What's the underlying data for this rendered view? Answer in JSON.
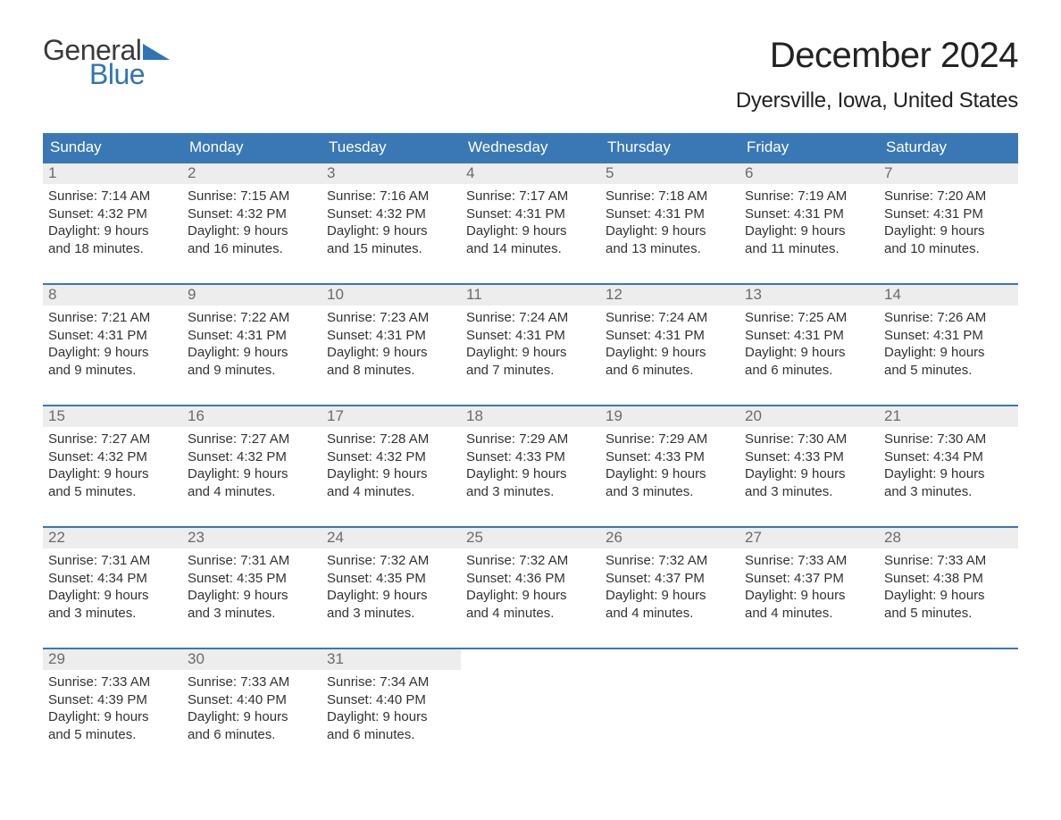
{
  "logo": {
    "text_top": "General",
    "text_bottom": "Blue",
    "accent_color": "#2f74b5"
  },
  "header": {
    "month_title": "December 2024",
    "location": "Dyersville, Iowa, United States"
  },
  "calendar": {
    "header_bg": "#3a78b5",
    "header_text_color": "#ffffff",
    "row_border_color": "#3a78b5",
    "daynum_bg": "#ededed",
    "daynum_color": "#6b6b6b",
    "body_text_color": "#333333",
    "weekdays": [
      "Sunday",
      "Monday",
      "Tuesday",
      "Wednesday",
      "Thursday",
      "Friday",
      "Saturday"
    ],
    "weeks": [
      [
        {
          "n": "1",
          "sunrise": "Sunrise: 7:14 AM",
          "sunset": "Sunset: 4:32 PM",
          "day1": "Daylight: 9 hours",
          "day2": "and 18 minutes."
        },
        {
          "n": "2",
          "sunrise": "Sunrise: 7:15 AM",
          "sunset": "Sunset: 4:32 PM",
          "day1": "Daylight: 9 hours",
          "day2": "and 16 minutes."
        },
        {
          "n": "3",
          "sunrise": "Sunrise: 7:16 AM",
          "sunset": "Sunset: 4:32 PM",
          "day1": "Daylight: 9 hours",
          "day2": "and 15 minutes."
        },
        {
          "n": "4",
          "sunrise": "Sunrise: 7:17 AM",
          "sunset": "Sunset: 4:31 PM",
          "day1": "Daylight: 9 hours",
          "day2": "and 14 minutes."
        },
        {
          "n": "5",
          "sunrise": "Sunrise: 7:18 AM",
          "sunset": "Sunset: 4:31 PM",
          "day1": "Daylight: 9 hours",
          "day2": "and 13 minutes."
        },
        {
          "n": "6",
          "sunrise": "Sunrise: 7:19 AM",
          "sunset": "Sunset: 4:31 PM",
          "day1": "Daylight: 9 hours",
          "day2": "and 11 minutes."
        },
        {
          "n": "7",
          "sunrise": "Sunrise: 7:20 AM",
          "sunset": "Sunset: 4:31 PM",
          "day1": "Daylight: 9 hours",
          "day2": "and 10 minutes."
        }
      ],
      [
        {
          "n": "8",
          "sunrise": "Sunrise: 7:21 AM",
          "sunset": "Sunset: 4:31 PM",
          "day1": "Daylight: 9 hours",
          "day2": "and 9 minutes."
        },
        {
          "n": "9",
          "sunrise": "Sunrise: 7:22 AM",
          "sunset": "Sunset: 4:31 PM",
          "day1": "Daylight: 9 hours",
          "day2": "and 9 minutes."
        },
        {
          "n": "10",
          "sunrise": "Sunrise: 7:23 AM",
          "sunset": "Sunset: 4:31 PM",
          "day1": "Daylight: 9 hours",
          "day2": "and 8 minutes."
        },
        {
          "n": "11",
          "sunrise": "Sunrise: 7:24 AM",
          "sunset": "Sunset: 4:31 PM",
          "day1": "Daylight: 9 hours",
          "day2": "and 7 minutes."
        },
        {
          "n": "12",
          "sunrise": "Sunrise: 7:24 AM",
          "sunset": "Sunset: 4:31 PM",
          "day1": "Daylight: 9 hours",
          "day2": "and 6 minutes."
        },
        {
          "n": "13",
          "sunrise": "Sunrise: 7:25 AM",
          "sunset": "Sunset: 4:31 PM",
          "day1": "Daylight: 9 hours",
          "day2": "and 6 minutes."
        },
        {
          "n": "14",
          "sunrise": "Sunrise: 7:26 AM",
          "sunset": "Sunset: 4:31 PM",
          "day1": "Daylight: 9 hours",
          "day2": "and 5 minutes."
        }
      ],
      [
        {
          "n": "15",
          "sunrise": "Sunrise: 7:27 AM",
          "sunset": "Sunset: 4:32 PM",
          "day1": "Daylight: 9 hours",
          "day2": "and 5 minutes."
        },
        {
          "n": "16",
          "sunrise": "Sunrise: 7:27 AM",
          "sunset": "Sunset: 4:32 PM",
          "day1": "Daylight: 9 hours",
          "day2": "and 4 minutes."
        },
        {
          "n": "17",
          "sunrise": "Sunrise: 7:28 AM",
          "sunset": "Sunset: 4:32 PM",
          "day1": "Daylight: 9 hours",
          "day2": "and 4 minutes."
        },
        {
          "n": "18",
          "sunrise": "Sunrise: 7:29 AM",
          "sunset": "Sunset: 4:33 PM",
          "day1": "Daylight: 9 hours",
          "day2": "and 3 minutes."
        },
        {
          "n": "19",
          "sunrise": "Sunrise: 7:29 AM",
          "sunset": "Sunset: 4:33 PM",
          "day1": "Daylight: 9 hours",
          "day2": "and 3 minutes."
        },
        {
          "n": "20",
          "sunrise": "Sunrise: 7:30 AM",
          "sunset": "Sunset: 4:33 PM",
          "day1": "Daylight: 9 hours",
          "day2": "and 3 minutes."
        },
        {
          "n": "21",
          "sunrise": "Sunrise: 7:30 AM",
          "sunset": "Sunset: 4:34 PM",
          "day1": "Daylight: 9 hours",
          "day2": "and 3 minutes."
        }
      ],
      [
        {
          "n": "22",
          "sunrise": "Sunrise: 7:31 AM",
          "sunset": "Sunset: 4:34 PM",
          "day1": "Daylight: 9 hours",
          "day2": "and 3 minutes."
        },
        {
          "n": "23",
          "sunrise": "Sunrise: 7:31 AM",
          "sunset": "Sunset: 4:35 PM",
          "day1": "Daylight: 9 hours",
          "day2": "and 3 minutes."
        },
        {
          "n": "24",
          "sunrise": "Sunrise: 7:32 AM",
          "sunset": "Sunset: 4:35 PM",
          "day1": "Daylight: 9 hours",
          "day2": "and 3 minutes."
        },
        {
          "n": "25",
          "sunrise": "Sunrise: 7:32 AM",
          "sunset": "Sunset: 4:36 PM",
          "day1": "Daylight: 9 hours",
          "day2": "and 4 minutes."
        },
        {
          "n": "26",
          "sunrise": "Sunrise: 7:32 AM",
          "sunset": "Sunset: 4:37 PM",
          "day1": "Daylight: 9 hours",
          "day2": "and 4 minutes."
        },
        {
          "n": "27",
          "sunrise": "Sunrise: 7:33 AM",
          "sunset": "Sunset: 4:37 PM",
          "day1": "Daylight: 9 hours",
          "day2": "and 4 minutes."
        },
        {
          "n": "28",
          "sunrise": "Sunrise: 7:33 AM",
          "sunset": "Sunset: 4:38 PM",
          "day1": "Daylight: 9 hours",
          "day2": "and 5 minutes."
        }
      ],
      [
        {
          "n": "29",
          "sunrise": "Sunrise: 7:33 AM",
          "sunset": "Sunset: 4:39 PM",
          "day1": "Daylight: 9 hours",
          "day2": "and 5 minutes."
        },
        {
          "n": "30",
          "sunrise": "Sunrise: 7:33 AM",
          "sunset": "Sunset: 4:40 PM",
          "day1": "Daylight: 9 hours",
          "day2": "and 6 minutes."
        },
        {
          "n": "31",
          "sunrise": "Sunrise: 7:34 AM",
          "sunset": "Sunset: 4:40 PM",
          "day1": "Daylight: 9 hours",
          "day2": "and 6 minutes."
        },
        {
          "empty": true
        },
        {
          "empty": true
        },
        {
          "empty": true
        },
        {
          "empty": true
        }
      ]
    ]
  }
}
